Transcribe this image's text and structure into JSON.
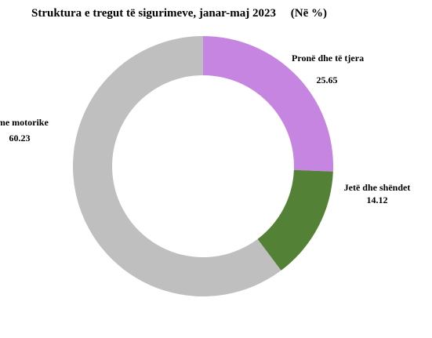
{
  "chart_data": {
    "type": "pie",
    "title": "Struktura e tregut të sigurimeve, janar-maj 2023",
    "unit": "(Në %)",
    "categories": [
      "Pronë dhe të tjera",
      "Jetë dhe shëndet",
      "Sigurime motorike"
    ],
    "values": [
      25.65,
      14.12,
      60.23
    ],
    "value_labels": [
      "25.65",
      "14.12",
      "60.23"
    ],
    "display_names": [
      "Pronë dhe të tjera",
      "Jetë dhe shëndet",
      "rime motorike"
    ],
    "colors": [
      "#C585E1",
      "#538135",
      "#BFBFBF"
    ],
    "style": "donut"
  }
}
